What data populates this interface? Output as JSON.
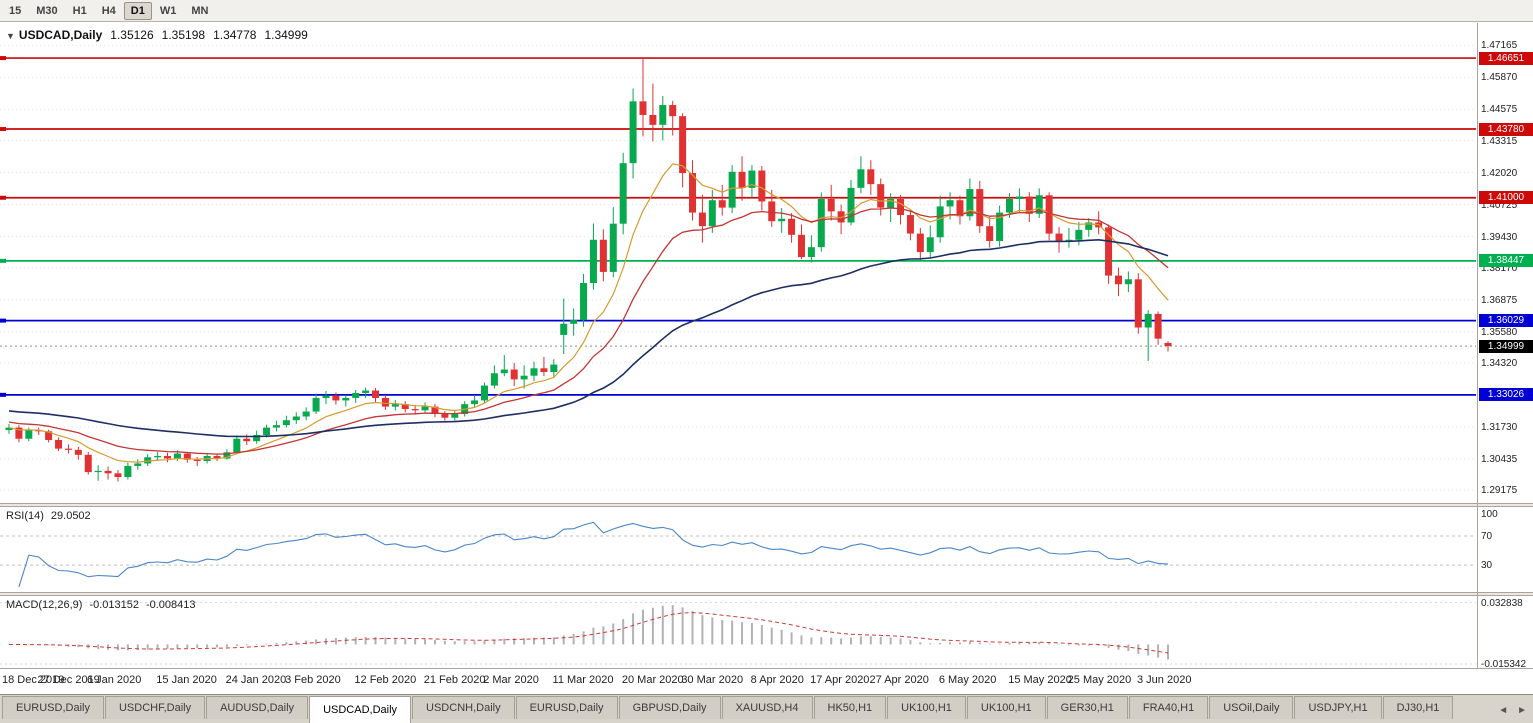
{
  "toolbar": {
    "timeframes": [
      {
        "label": "15",
        "active": false
      },
      {
        "label": "M30",
        "active": false
      },
      {
        "label": "H1",
        "active": false
      },
      {
        "label": "H4",
        "active": false
      },
      {
        "label": "D1",
        "active": true
      },
      {
        "label": "W1",
        "active": false
      },
      {
        "label": "MN",
        "active": false
      }
    ]
  },
  "chart_data": {
    "type": "candlestick",
    "symbol": "USDCAD",
    "timeframe": "Daily",
    "title": {
      "collapse_icon": "▼",
      "symbol_label": "USDCAD,Daily",
      "open": "1.35126",
      "high": "1.35198",
      "low": "1.34778",
      "close": "1.34999"
    },
    "up_color": "#07a84e",
    "down_color": "#e03232",
    "price_axis": {
      "max": 1.4807,
      "min": 1.2865,
      "ticks": [
        "1.47165",
        "1.45870",
        "1.44575",
        "1.43315",
        "1.42020",
        "1.40725",
        "1.39430",
        "1.38170",
        "1.36875",
        "1.35580",
        "1.34320",
        "1.31730",
        "1.30435",
        "1.29175"
      ]
    },
    "levels": [
      {
        "label": "1.46651",
        "color": "#cc0a0a"
      },
      {
        "label": "1.43780",
        "color": "#cc0a0a"
      },
      {
        "label": "1.41000",
        "color": "#cc0a0a"
      },
      {
        "label": "1.38447",
        "color": "#00b050"
      },
      {
        "label": "1.36029",
        "color": "#0000d4"
      },
      {
        "label": "1.33026",
        "color": "#0000d4"
      }
    ],
    "current_price": {
      "label": "1.34999",
      "color": "#000000"
    },
    "moving_averages": [
      {
        "name": "ma-fast",
        "period": 9,
        "seed": null,
        "color": "#d79b2f",
        "width": 1.2
      },
      {
        "name": "ma-mid",
        "period": 20,
        "seed": 1.3195,
        "color": "#c23636",
        "width": 1.3
      },
      {
        "name": "ma-slow",
        "period": 55,
        "seed": 1.324,
        "color": "#1e2f63",
        "width": 1.6
      }
    ],
    "candles": [
      [
        1.316,
        1.3185,
        1.3145,
        1.317
      ],
      [
        1.317,
        1.318,
        1.311,
        1.3125
      ],
      [
        1.3125,
        1.317,
        1.3115,
        1.316
      ],
      [
        1.316,
        1.317,
        1.314,
        1.3155
      ],
      [
        1.3155,
        1.3162,
        1.311,
        1.312
      ],
      [
        1.312,
        1.313,
        1.3075,
        1.3085
      ],
      [
        1.3085,
        1.3102,
        1.3065,
        1.308
      ],
      [
        1.308,
        1.3092,
        1.304,
        1.306
      ],
      [
        1.306,
        1.3072,
        1.298,
        1.299
      ],
      [
        1.299,
        1.3018,
        1.2955,
        1.2995
      ],
      [
        1.2995,
        1.3012,
        1.296,
        1.2985
      ],
      [
        1.2985,
        1.2998,
        1.2952,
        1.297
      ],
      [
        1.297,
        1.3028,
        1.296,
        1.3015
      ],
      [
        1.3015,
        1.3042,
        1.3,
        1.3025
      ],
      [
        1.3025,
        1.3062,
        1.3015,
        1.305
      ],
      [
        1.305,
        1.3072,
        1.3035,
        1.3055
      ],
      [
        1.3055,
        1.3068,
        1.303,
        1.3045
      ],
      [
        1.3045,
        1.3078,
        1.3035,
        1.3065
      ],
      [
        1.3065,
        1.3072,
        1.3028,
        1.304
      ],
      [
        1.304,
        1.3052,
        1.3015,
        1.3035
      ],
      [
        1.3035,
        1.3068,
        1.3025,
        1.3055
      ],
      [
        1.3055,
        1.3066,
        1.3035,
        1.3045
      ],
      [
        1.3045,
        1.3082,
        1.304,
        1.307
      ],
      [
        1.307,
        1.3138,
        1.3062,
        1.3125
      ],
      [
        1.3125,
        1.3142,
        1.31,
        1.3115
      ],
      [
        1.3115,
        1.3158,
        1.3105,
        1.314
      ],
      [
        1.314,
        1.3182,
        1.313,
        1.317
      ],
      [
        1.317,
        1.3198,
        1.3155,
        1.318
      ],
      [
        1.318,
        1.3218,
        1.317,
        1.32
      ],
      [
        1.32,
        1.3232,
        1.3185,
        1.3215
      ],
      [
        1.3215,
        1.3252,
        1.32,
        1.3235
      ],
      [
        1.3235,
        1.3308,
        1.3225,
        1.329
      ],
      [
        1.329,
        1.3318,
        1.3265,
        1.33
      ],
      [
        1.33,
        1.3312,
        1.3263,
        1.328
      ],
      [
        1.328,
        1.3302,
        1.3255,
        1.329
      ],
      [
        1.329,
        1.3322,
        1.327,
        1.331
      ],
      [
        1.331,
        1.3332,
        1.329,
        1.332
      ],
      [
        1.332,
        1.333,
        1.3272,
        1.329
      ],
      [
        1.329,
        1.3302,
        1.3242,
        1.3255
      ],
      [
        1.3255,
        1.3282,
        1.324,
        1.3265
      ],
      [
        1.3265,
        1.3277,
        1.3232,
        1.3245
      ],
      [
        1.3245,
        1.3262,
        1.3222,
        1.324
      ],
      [
        1.324,
        1.3272,
        1.323,
        1.3255
      ],
      [
        1.3255,
        1.3266,
        1.3212,
        1.3225
      ],
      [
        1.3225,
        1.3237,
        1.3198,
        1.321
      ],
      [
        1.321,
        1.3242,
        1.3198,
        1.3225
      ],
      [
        1.3225,
        1.3277,
        1.3215,
        1.3265
      ],
      [
        1.3265,
        1.3302,
        1.3253,
        1.328
      ],
      [
        1.328,
        1.3352,
        1.327,
        1.334
      ],
      [
        1.334,
        1.3422,
        1.3328,
        1.339
      ],
      [
        1.339,
        1.3464,
        1.3378,
        1.3405
      ],
      [
        1.3405,
        1.3432,
        1.3338,
        1.3365
      ],
      [
        1.3365,
        1.3422,
        1.3328,
        1.338
      ],
      [
        1.338,
        1.3437,
        1.3358,
        1.341
      ],
      [
        1.341,
        1.3456,
        1.3378,
        1.3395
      ],
      [
        1.3395,
        1.3447,
        1.3372,
        1.3425
      ],
      [
        1.3545,
        1.3692,
        1.3468,
        1.359
      ],
      [
        1.359,
        1.3652,
        1.3542,
        1.3605
      ],
      [
        1.3605,
        1.3792,
        1.3578,
        1.3755
      ],
      [
        1.3755,
        1.3996,
        1.3728,
        1.393
      ],
      [
        1.393,
        1.3972,
        1.3762,
        1.38
      ],
      [
        1.38,
        1.4062,
        1.3778,
        1.3995
      ],
      [
        1.3995,
        1.4282,
        1.3952,
        1.424
      ],
      [
        1.424,
        1.4542,
        1.4178,
        1.449
      ],
      [
        1.449,
        1.4669,
        1.4348,
        1.4435
      ],
      [
        1.4435,
        1.4562,
        1.4328,
        1.4395
      ],
      [
        1.4395,
        1.4512,
        1.4332,
        1.4475
      ],
      [
        1.4475,
        1.4492,
        1.4352,
        1.443
      ],
      [
        1.443,
        1.4442,
        1.4142,
        1.42
      ],
      [
        1.42,
        1.4252,
        1.4008,
        1.404
      ],
      [
        1.404,
        1.4112,
        1.3918,
        1.3985
      ],
      [
        1.3985,
        1.4132,
        1.3958,
        1.409
      ],
      [
        1.409,
        1.4152,
        1.4028,
        1.406
      ],
      [
        1.406,
        1.4232,
        1.4038,
        1.4205
      ],
      [
        1.4205,
        1.4268,
        1.4088,
        1.414
      ],
      [
        1.414,
        1.4232,
        1.4102,
        1.421
      ],
      [
        1.421,
        1.4228,
        1.4048,
        1.4085
      ],
      [
        1.4085,
        1.4132,
        1.3982,
        1.4005
      ],
      [
        1.4005,
        1.4058,
        1.3958,
        1.4015
      ],
      [
        1.4015,
        1.4038,
        1.3918,
        1.395
      ],
      [
        1.395,
        1.3992,
        1.3852,
        1.386
      ],
      [
        1.386,
        1.3948,
        1.3838,
        1.39
      ],
      [
        1.39,
        1.4122,
        1.3882,
        1.4095
      ],
      [
        1.4095,
        1.4152,
        1.4008,
        1.4045
      ],
      [
        1.4045,
        1.4072,
        1.3952,
        1.4
      ],
      [
        1.4,
        1.4172,
        1.3988,
        1.414
      ],
      [
        1.414,
        1.4268,
        1.4118,
        1.4215
      ],
      [
        1.4215,
        1.4252,
        1.4112,
        1.4155
      ],
      [
        1.4155,
        1.4178,
        1.4028,
        1.406
      ],
      [
        1.406,
        1.4118,
        1.4002,
        1.4095
      ],
      [
        1.4095,
        1.4112,
        1.3992,
        1.403
      ],
      [
        1.403,
        1.4052,
        1.3928,
        1.3955
      ],
      [
        1.3955,
        1.3978,
        1.3848,
        1.388
      ],
      [
        1.388,
        1.3988,
        1.3852,
        1.394
      ],
      [
        1.394,
        1.4108,
        1.3918,
        1.4065
      ],
      [
        1.4065,
        1.4122,
        1.4012,
        1.409
      ],
      [
        1.409,
        1.4108,
        1.3992,
        1.4025
      ],
      [
        1.4025,
        1.4178,
        1.4008,
        1.4135
      ],
      [
        1.4135,
        1.4168,
        1.3958,
        1.3985
      ],
      [
        1.3985,
        1.4022,
        1.3898,
        1.3925
      ],
      [
        1.3925,
        1.4068,
        1.3902,
        1.404
      ],
      [
        1.404,
        1.4118,
        1.4018,
        1.4095
      ],
      [
        1.4095,
        1.4138,
        1.4042,
        1.4105
      ],
      [
        1.4105,
        1.4122,
        1.4002,
        1.4035
      ],
      [
        1.4035,
        1.4138,
        1.4018,
        1.411
      ],
      [
        1.411,
        1.4122,
        1.3928,
        1.3955
      ],
      [
        1.3955,
        1.3982,
        1.3878,
        1.3925
      ],
      [
        1.3925,
        1.3978,
        1.3898,
        1.393
      ],
      [
        1.393,
        1.4002,
        1.3908,
        1.397
      ],
      [
        1.397,
        1.4018,
        1.3942,
        1.4
      ],
      [
        1.4,
        1.4045,
        1.3952,
        1.398
      ],
      [
        1.398,
        1.3992,
        1.3752,
        1.3785
      ],
      [
        1.3785,
        1.3818,
        1.3702,
        1.375
      ],
      [
        1.375,
        1.3802,
        1.3718,
        1.377
      ],
      [
        1.377,
        1.3795,
        1.355,
        1.3575
      ],
      [
        1.3575,
        1.3645,
        1.344,
        1.363
      ],
      [
        1.363,
        1.364,
        1.3505,
        1.353
      ],
      [
        1.35126,
        1.35198,
        1.34778,
        1.34999
      ]
    ],
    "x_axis_labels": [
      {
        "index": 0,
        "text": "18 Dec 2019"
      },
      {
        "index": 6,
        "text": "27 Dec 2019"
      },
      {
        "index": 11,
        "text": "6 Jan 2020"
      },
      {
        "index": 18,
        "text": "15 Jan 2020"
      },
      {
        "index": 25,
        "text": "24 Jan 2020"
      },
      {
        "index": 31,
        "text": "3 Feb 2020"
      },
      {
        "index": 38,
        "text": "12 Feb 2020"
      },
      {
        "index": 45,
        "text": "21 Feb 2020"
      },
      {
        "index": 51,
        "text": "2 Mar 2020"
      },
      {
        "index": 58,
        "text": "11 Mar 2020"
      },
      {
        "index": 65,
        "text": "20 Mar 2020"
      },
      {
        "index": 71,
        "text": "30 Mar 2020"
      },
      {
        "index": 78,
        "text": "8 Apr 2020"
      },
      {
        "index": 84,
        "text": "17 Apr 2020"
      },
      {
        "index": 90,
        "text": "27 Apr 2020"
      },
      {
        "index": 97,
        "text": "6 May 2020"
      },
      {
        "index": 104,
        "text": "15 May 2020"
      },
      {
        "index": 110,
        "text": "25 May 2020"
      },
      {
        "index": 117,
        "text": "3 Jun 2020"
      }
    ],
    "rsi": {
      "label": "RSI(14)",
      "value": "29.0502",
      "period": 14,
      "color": "#4a86c8",
      "axis": [
        {
          "v": 100,
          "label": "100",
          "dashed": false
        },
        {
          "v": 70,
          "label": "70",
          "dashed": true
        },
        {
          "v": 30,
          "label": "30",
          "dashed": true
        }
      ]
    },
    "macd": {
      "label": "MACD(12,26,9)",
      "value_main": "-0.013152",
      "value_signal": "-0.008413",
      "fast": 12,
      "slow": 26,
      "signal": 9,
      "hist_color": "#b2b2b2",
      "signal_color": "#cc3b3b",
      "axis": [
        {
          "v": 0.032838,
          "label": "0.032838"
        },
        {
          "v": -0.015342,
          "label": "-0.015342"
        }
      ]
    }
  },
  "tabs": {
    "scroll_left": "◄",
    "scroll_right": "►",
    "items": [
      {
        "label": "EURUSD,Daily",
        "active": false
      },
      {
        "label": "USDCHF,Daily",
        "active": false
      },
      {
        "label": "AUDUSD,Daily",
        "active": false
      },
      {
        "label": "USDCAD,Daily",
        "active": true
      },
      {
        "label": "USDCNH,Daily",
        "active": false
      },
      {
        "label": "EURUSD,Daily",
        "active": false
      },
      {
        "label": "GBPUSD,Daily",
        "active": false
      },
      {
        "label": "XAUUSD,H4",
        "active": false
      },
      {
        "label": "HK50,H1",
        "active": false
      },
      {
        "label": "UK100,H1",
        "active": false
      },
      {
        "label": "UK100,H1",
        "active": false
      },
      {
        "label": "GER30,H1",
        "active": false
      },
      {
        "label": "FRA40,H1",
        "active": false
      },
      {
        "label": "USOil,Daily",
        "active": false
      },
      {
        "label": "USDJPY,H1",
        "active": false
      },
      {
        "label": "DJ30,H1",
        "active": false
      }
    ]
  }
}
